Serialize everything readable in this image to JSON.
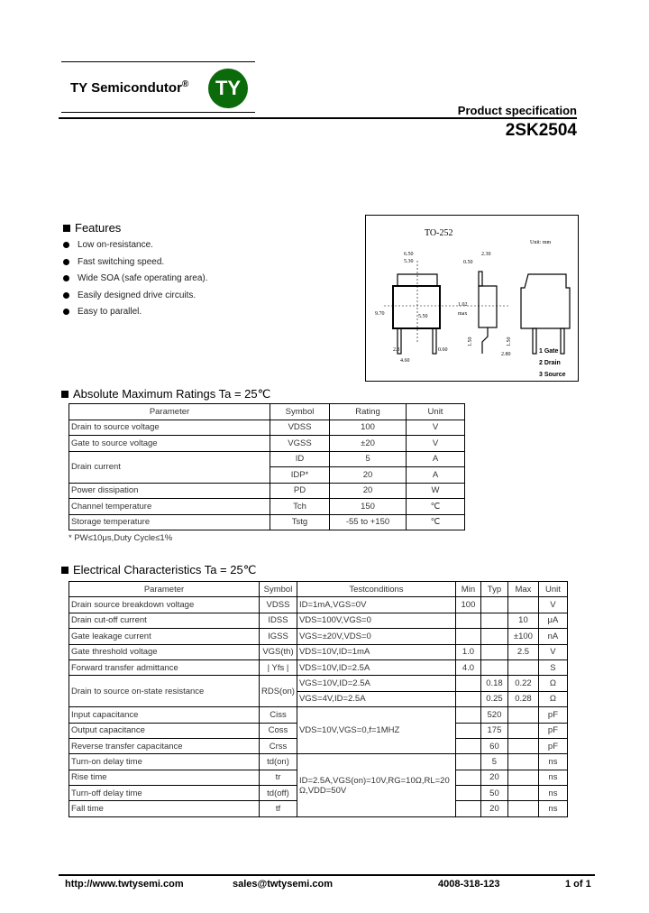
{
  "header": {
    "brand": "TY Semicondutor",
    "registered": "®",
    "logo_text": "TY",
    "logo_color": "#0b6b0b",
    "product_spec": "Product specification",
    "part_number": "2SK2504"
  },
  "features": {
    "title": "Features",
    "items": [
      "Low on-resistance.",
      "Fast switching speed.",
      "Wide SOA (safe operating area).",
      "Easily designed drive circuits.",
      "Easy to parallel."
    ]
  },
  "package": {
    "name": "TO-252",
    "unit": "Unit: mm",
    "pins": [
      "1 Gate",
      "2 Drain",
      "3 Source"
    ],
    "dims": [
      "6.50",
      "5.30",
      "2.30",
      "0.50",
      "9.70",
      "2.3",
      "0.60",
      "4.60",
      "1.02",
      "max",
      "5.50",
      "1.50",
      "1.50",
      "2.80"
    ]
  },
  "abs_max": {
    "title": "Absolute Maximum Ratings Ta = 25℃",
    "headers": [
      "Parameter",
      "Symbol",
      "Rating",
      "Unit"
    ],
    "rows": [
      [
        "Drain to source voltage",
        "VDSS",
        "100",
        "V"
      ],
      [
        "Gate to source voltage",
        "VGSS",
        "±20",
        "V"
      ],
      [
        "Drain current",
        "ID",
        "5",
        "A"
      ],
      [
        "",
        "IDP*",
        "20",
        "A"
      ],
      [
        "Power dissipation",
        "PD",
        "20",
        "W"
      ],
      [
        "Channel temperature",
        "Tch",
        "150",
        "℃"
      ],
      [
        "Storage temperature",
        "Tstg",
        "-55 to +150",
        "℃"
      ]
    ],
    "footnote": "* PW≤10μs,Duty Cycle≤1%"
  },
  "elec": {
    "title": "Electrical Characteristics Ta = 25℃",
    "headers": [
      "Parameter",
      "Symbol",
      "Testconditions",
      "Min",
      "Typ",
      "Max",
      "Unit"
    ],
    "rows": [
      [
        "Drain source breakdown voltage",
        "VDSS",
        "ID=1mA,VGS=0V",
        "100",
        "",
        "",
        "V"
      ],
      [
        "Drain cut-off current",
        "IDSS",
        "VDS=100V,VGS=0",
        "",
        "",
        "10",
        "μA"
      ],
      [
        "Gate leakage current",
        "IGSS",
        "VGS=±20V,VDS=0",
        "",
        "",
        "±100",
        "nA"
      ],
      [
        "Gate threshold voltage",
        "VGS(th)",
        "VDS=10V,ID=1mA",
        "1.0",
        "",
        "2.5",
        "V"
      ],
      [
        "Forward transfer admittance",
        "| Yfs |",
        "VDS=10V,ID=2.5A",
        "4.0",
        "",
        "",
        "S"
      ],
      [
        "Drain to source on-state resistance",
        "RDS(on)",
        "VGS=10V,ID=2.5A",
        "",
        "0.18",
        "0.22",
        "Ω"
      ],
      [
        "",
        "",
        "VGS=4V,ID=2.5A",
        "",
        "0.25",
        "0.28",
        "Ω"
      ],
      [
        "Input capacitance",
        "Ciss",
        "VDS=10V,VGS=0,f=1MHZ",
        "",
        "520",
        "",
        "pF"
      ],
      [
        "Output capacitance",
        "Coss",
        "",
        "",
        "175",
        "",
        "pF"
      ],
      [
        "Reverse transfer capacitance",
        "Crss",
        "",
        "",
        "60",
        "",
        "pF"
      ],
      [
        "Turn-on delay time",
        "td(on)",
        "ID=2.5A,VGS(on)=10V,RG=10Ω,RL=20 Ω,VDD=50V",
        "",
        "5",
        "",
        "ns"
      ],
      [
        "Rise time",
        "tr",
        "",
        "",
        "20",
        "",
        "ns"
      ],
      [
        "Turn-off delay time",
        "td(off)",
        "",
        "",
        "50",
        "",
        "ns"
      ],
      [
        "Fall time",
        "tf",
        "",
        "",
        "20",
        "",
        "ns"
      ]
    ]
  },
  "footer": {
    "url": "http://www.twtysemi.com",
    "email": "sales@twtysemi.com",
    "phone": "4008-318-123",
    "page": "1 of 1"
  }
}
